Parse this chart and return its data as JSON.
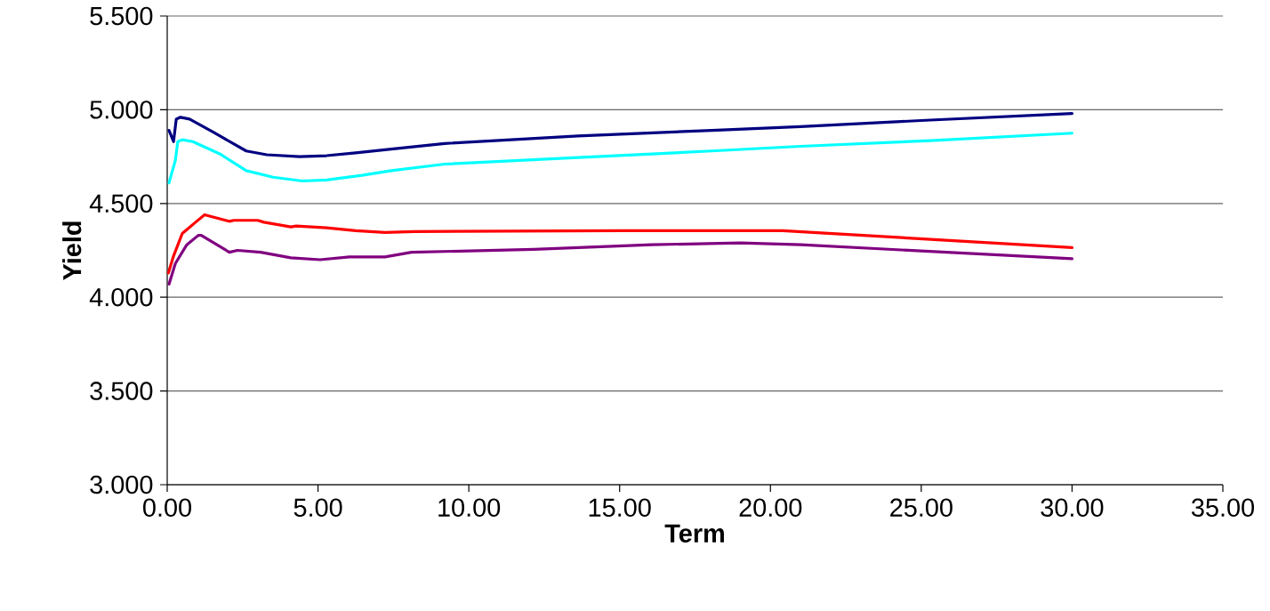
{
  "chart_data": {
    "type": "line",
    "xlabel": "Term",
    "ylabel": "Yield",
    "xlim": [
      0,
      35
    ],
    "ylim": [
      3.0,
      5.5
    ],
    "xticks": [
      {
        "value": 0,
        "label": "0.00"
      },
      {
        "value": 5,
        "label": "5.00"
      },
      {
        "value": 10,
        "label": "10.00"
      },
      {
        "value": 15,
        "label": "15.00"
      },
      {
        "value": 20,
        "label": "20.00"
      },
      {
        "value": 25,
        "label": "25.00"
      },
      {
        "value": 30,
        "label": "30.00"
      },
      {
        "value": 35,
        "label": "35.00"
      }
    ],
    "yticks": [
      {
        "value": 3.0,
        "label": "3.000"
      },
      {
        "value": 3.5,
        "label": "3.500"
      },
      {
        "value": 4.0,
        "label": "4.000"
      },
      {
        "value": 4.5,
        "label": "4.500"
      },
      {
        "value": 5.0,
        "label": "5.000"
      },
      {
        "value": 5.5,
        "label": "5.500"
      }
    ],
    "grid": "y",
    "legend": false,
    "marker": "none",
    "line_style": "solid",
    "series": [
      {
        "color": "#000080",
        "x": [
          0.06,
          0.21,
          0.3,
          0.44,
          0.74,
          1.53,
          2.62,
          3.3,
          4.39,
          5.28,
          6.25,
          7.43,
          9.2,
          13.62,
          18.05,
          21.0,
          25.3,
          30.0
        ],
        "values": [
          4.89,
          4.83,
          4.95,
          4.96,
          4.95,
          4.88,
          4.78,
          4.76,
          4.75,
          4.755,
          4.77,
          4.79,
          4.82,
          4.86,
          4.89,
          4.91,
          4.945,
          4.98
        ]
      },
      {
        "color": "#00ffff",
        "x": [
          0.06,
          0.27,
          0.35,
          0.5,
          0.85,
          1.74,
          2.62,
          3.51,
          4.48,
          5.28,
          6.46,
          7.43,
          9.2,
          13.62,
          18.05,
          21.0,
          25.3,
          30.0
        ],
        "values": [
          4.61,
          4.73,
          4.83,
          4.84,
          4.83,
          4.765,
          4.675,
          4.64,
          4.62,
          4.625,
          4.65,
          4.675,
          4.71,
          4.745,
          4.78,
          4.805,
          4.835,
          4.875
        ]
      },
      {
        "color": "#ff0000",
        "x": [
          0.04,
          0.21,
          0.5,
          0.94,
          1.24,
          2.06,
          2.21,
          3.0,
          3.21,
          4.1,
          4.28,
          5.28,
          6.25,
          7.22,
          8.2,
          15.1,
          19.0,
          20.4,
          30.0
        ],
        "values": [
          4.13,
          4.22,
          4.34,
          4.4,
          4.44,
          4.405,
          4.41,
          4.41,
          4.4,
          4.375,
          4.38,
          4.37,
          4.355,
          4.345,
          4.35,
          4.355,
          4.355,
          4.355,
          4.265
        ]
      },
      {
        "color": "#800080",
        "x": [
          0.06,
          0.27,
          0.65,
          1.03,
          1.13,
          2.06,
          2.33,
          3.1,
          4.1,
          5.07,
          6.04,
          7.22,
          8.1,
          12.15,
          16.07,
          19.0,
          21.0,
          30.0
        ],
        "values": [
          4.07,
          4.18,
          4.28,
          4.33,
          4.33,
          4.24,
          4.25,
          4.24,
          4.21,
          4.2,
          4.215,
          4.215,
          4.24,
          4.255,
          4.28,
          4.29,
          4.28,
          4.205
        ]
      }
    ]
  }
}
